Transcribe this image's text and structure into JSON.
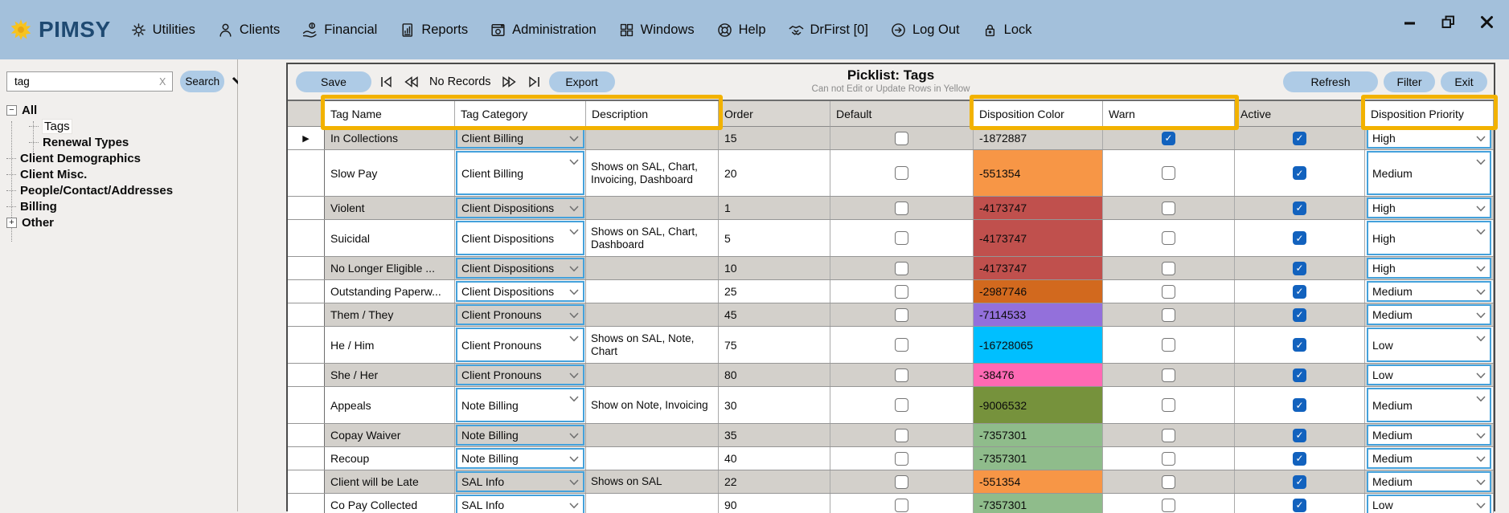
{
  "menubar": {
    "brand": "PIMSY",
    "items": [
      {
        "label": "Utilities",
        "icon": "gear-icon"
      },
      {
        "label": "Clients",
        "icon": "person-icon"
      },
      {
        "label": "Financial",
        "icon": "hand-dollar-icon"
      },
      {
        "label": "Reports",
        "icon": "report-document-icon"
      },
      {
        "label": "Administration",
        "icon": "admin-window-icon"
      },
      {
        "label": "Windows",
        "icon": "windows-squares-icon"
      },
      {
        "label": "Help",
        "icon": "life-ring-icon"
      },
      {
        "label": "DrFirst [0]",
        "icon": "handshake-icon"
      },
      {
        "label": "Log Out",
        "icon": "logout-arrow-icon"
      },
      {
        "label": "Lock",
        "icon": "lock-icon"
      }
    ],
    "window_controls": [
      "minimize",
      "restore",
      "close"
    ]
  },
  "sidebar": {
    "search": {
      "value": "tag",
      "clear_label": "X",
      "button_label": "Search"
    },
    "tree": [
      {
        "label": "All",
        "level": 0,
        "expander": "minus",
        "bold": true,
        "selected": false
      },
      {
        "label": "Tags",
        "level": 1,
        "expander": "none",
        "bold": false,
        "selected": true
      },
      {
        "label": "Renewal Types",
        "level": 1,
        "expander": "none",
        "bold": true,
        "selected": false
      },
      {
        "label": "Client Demographics",
        "level": 0,
        "expander": "none",
        "bold": true,
        "selected": false
      },
      {
        "label": "Client Misc.",
        "level": 0,
        "expander": "none",
        "bold": true,
        "selected": false
      },
      {
        "label": "People/Contact/Addresses",
        "level": 0,
        "expander": "none",
        "bold": true,
        "selected": false
      },
      {
        "label": "Billing",
        "level": 0,
        "expander": "none",
        "bold": true,
        "selected": false
      },
      {
        "label": "Other",
        "level": 0,
        "expander": "plus",
        "bold": true,
        "selected": false
      }
    ]
  },
  "toolbar": {
    "save_label": "Save",
    "record_status": "No Records",
    "export_label": "Export",
    "title": "Picklist: Tags",
    "subtitle": "Can not Edit or Update Rows in Yellow",
    "refresh_label": "Refresh",
    "filter_label": "Filter",
    "exit_label": "Exit"
  },
  "grid": {
    "columns": [
      "Tag Name",
      "Tag Category",
      "Description",
      "Order",
      "Default",
      "Disposition Color",
      "Warn",
      "Active",
      "Disposition Priority"
    ],
    "rows": [
      {
        "current": true,
        "tag_name": "In Collections",
        "category": "Client Billing",
        "description": "",
        "order": "15",
        "default": false,
        "disposition_color": "-1872887",
        "color_hex": null,
        "warn": true,
        "active": true,
        "priority": "High"
      },
      {
        "current": false,
        "tag_name": "Slow Pay",
        "category": "Client Billing",
        "description": "Shows on SAL, Chart, Invoicing, Dashboard",
        "order": "20",
        "default": false,
        "disposition_color": "-551354",
        "color_hex": "#F79646",
        "warn": false,
        "active": true,
        "priority": "Medium"
      },
      {
        "current": false,
        "tag_name": "Violent",
        "category": "Client Dispositions",
        "description": "",
        "order": "1",
        "default": false,
        "disposition_color": "-4173747",
        "color_hex": "#C0504D",
        "warn": false,
        "active": true,
        "priority": "High"
      },
      {
        "current": false,
        "tag_name": "Suicidal",
        "category": "Client Dispositions",
        "description": "Shows on SAL, Chart, Dashboard",
        "order": "5",
        "default": false,
        "disposition_color": "-4173747",
        "color_hex": "#C0504D",
        "warn": false,
        "active": true,
        "priority": "High"
      },
      {
        "current": false,
        "tag_name": "No Longer Eligible ...",
        "category": "Client Dispositions",
        "description": "",
        "order": "10",
        "default": false,
        "disposition_color": "-4173747",
        "color_hex": "#C0504D",
        "warn": false,
        "active": true,
        "priority": "High"
      },
      {
        "current": false,
        "tag_name": "Outstanding Paperw...",
        "category": "Client Dispositions",
        "description": "",
        "order": "25",
        "default": false,
        "disposition_color": "-2987746",
        "color_hex": "#D2691E",
        "warn": false,
        "active": true,
        "priority": "Medium"
      },
      {
        "current": false,
        "tag_name": "Them / They",
        "category": "Client Pronouns",
        "description": "",
        "order": "45",
        "default": false,
        "disposition_color": "-7114533",
        "color_hex": "#9370DB",
        "warn": false,
        "active": true,
        "priority": "Medium"
      },
      {
        "current": false,
        "tag_name": "He / Him",
        "category": "Client Pronouns",
        "description": "Shows on SAL, Note, Chart",
        "order": "75",
        "default": false,
        "disposition_color": "-16728065",
        "color_hex": "#00BFFF",
        "warn": false,
        "active": true,
        "priority": "Low"
      },
      {
        "current": false,
        "tag_name": "She / Her",
        "category": "Client Pronouns",
        "description": "",
        "order": "80",
        "default": false,
        "disposition_color": "-38476",
        "color_hex": "#FF69B4",
        "warn": false,
        "active": true,
        "priority": "Low"
      },
      {
        "current": false,
        "tag_name": "Appeals",
        "category": "Note Billing",
        "description": "Show on Note, Invoicing",
        "order": "30",
        "default": false,
        "disposition_color": "-9006532",
        "color_hex": "#76923C",
        "warn": false,
        "active": true,
        "priority": "Medium"
      },
      {
        "current": false,
        "tag_name": "Copay Waiver",
        "category": "Note Billing",
        "description": "",
        "order": "35",
        "default": false,
        "disposition_color": "-7357301",
        "color_hex": "#8FBC8B",
        "warn": false,
        "active": true,
        "priority": "Medium"
      },
      {
        "current": false,
        "tag_name": "Recoup",
        "category": "Note Billing",
        "description": "",
        "order": "40",
        "default": false,
        "disposition_color": "-7357301",
        "color_hex": "#8FBC8B",
        "warn": false,
        "active": true,
        "priority": "Medium"
      },
      {
        "current": false,
        "tag_name": "Client will be Late",
        "category": "SAL Info",
        "description": "Shows on SAL",
        "order": "22",
        "default": false,
        "disposition_color": "-551354",
        "color_hex": "#F79646",
        "warn": false,
        "active": true,
        "priority": "Medium"
      },
      {
        "current": false,
        "tag_name": "Co Pay Collected",
        "category": "SAL Info",
        "description": "",
        "order": "90",
        "default": false,
        "disposition_color": "-7357301",
        "color_hex": "#8FBC8B",
        "warn": false,
        "active": true,
        "priority": "Low"
      }
    ]
  },
  "colors": {
    "menubar_bg": "#A3C0DB",
    "button_bg": "#AECBE6",
    "checkbox_checked": "#1262BE",
    "dropdown_border": "#44A1DB",
    "highlight_yellow": "#F2B200",
    "row_alt_gray": "#D3D0CB"
  }
}
